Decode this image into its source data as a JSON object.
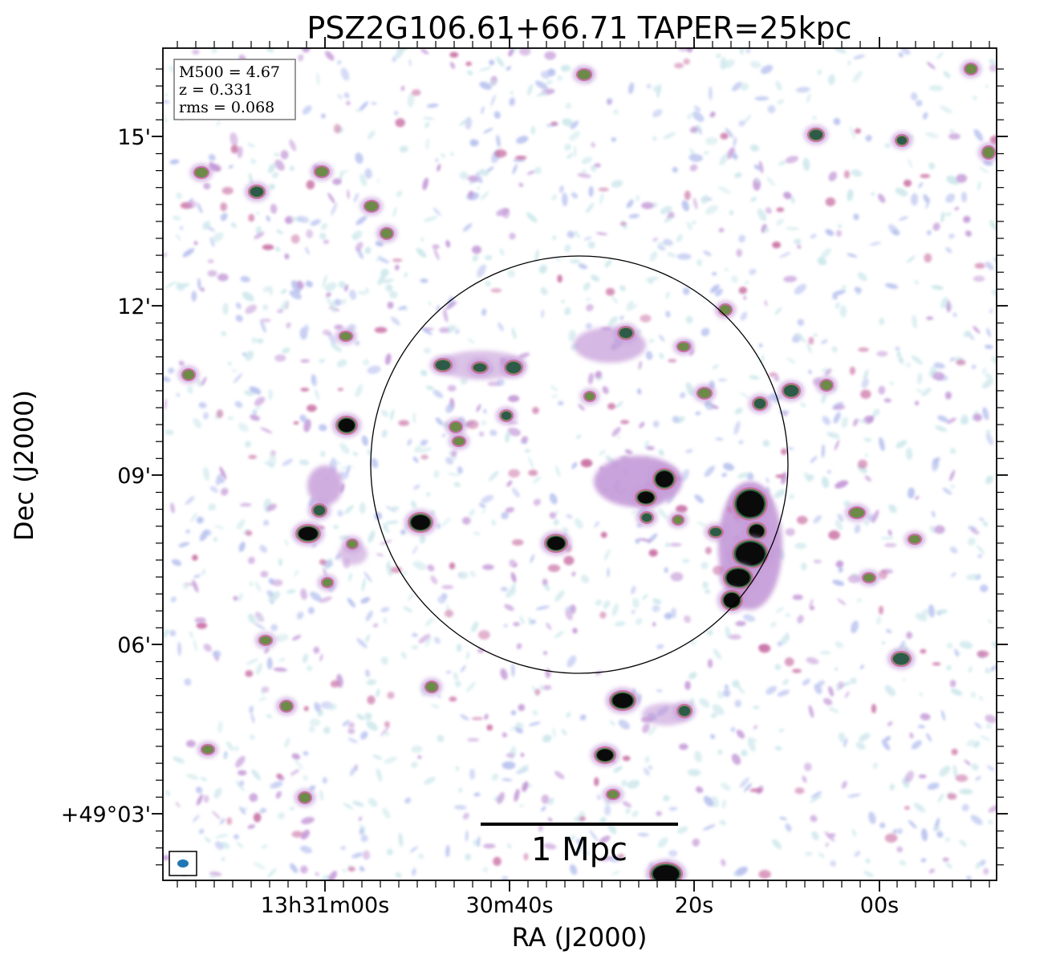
{
  "chart_data": {
    "type": "heatmap",
    "title": "PSZ2G106.61+66.71 TAPER=25kpc",
    "xlabel": "RA (J2000)",
    "ylabel": "Dec (J2000)",
    "x_ticks": [
      "13h31m00s",
      "30m40s",
      "20s",
      "00s"
    ],
    "y_ticks": [
      "15'",
      "12'",
      "09'",
      "06'",
      "+49°03'"
    ],
    "info_box": [
      "M500 = 4.67",
      "z = 0.331",
      "rms = 0.068"
    ],
    "scale_bar_label": "1 Mpc",
    "colormap": [
      "#ffffff",
      "#cfe8ec",
      "#b8c2ef",
      "#c49ad8",
      "#c86aa0",
      "#9a4a70",
      "#6d8a48",
      "#2e5a4a",
      "#0a0a0a"
    ]
  }
}
